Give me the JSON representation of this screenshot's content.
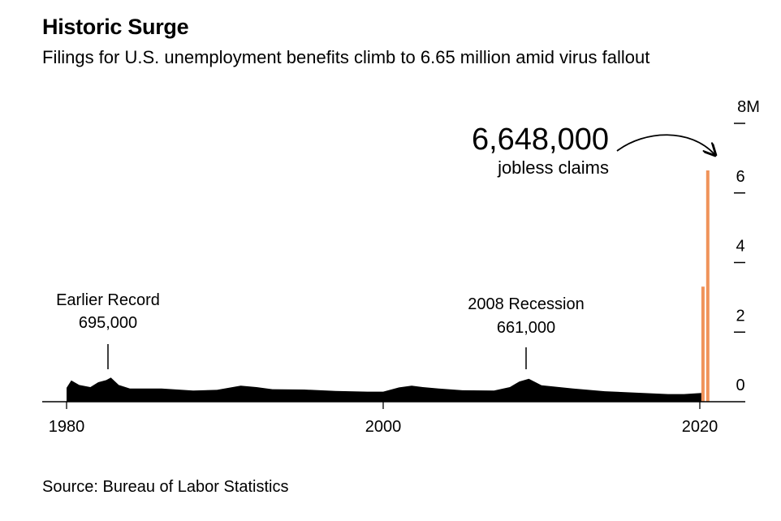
{
  "header": {
    "title": "Historic Surge",
    "subtitle": "Filings for U.S. unemployment benefits climb to 6.65 million amid virus fallout"
  },
  "footer": {
    "source": "Source: Bureau of Labor Statistics"
  },
  "annotations": {
    "highlight_value": "6,648,000",
    "highlight_label": "jobless claims",
    "earlier_record_label": "Earlier Record",
    "earlier_record_value": "695,000",
    "recession_label": "2008 Recession",
    "recession_value": "661,000"
  },
  "colors": {
    "history": "#000000",
    "highlight": "#f0935a"
  },
  "chart_data": {
    "type": "bar",
    "title": "Historic Surge",
    "subtitle": "Filings for U.S. unemployment benefits climb to 6.65 million amid virus fallout",
    "x_ticks": [
      "1980",
      "2000",
      "2020"
    ],
    "y_ticks": [
      "8M",
      "6",
      "4",
      "2",
      "0"
    ],
    "ylim": [
      0,
      8000000
    ],
    "xlim": [
      1980,
      2021.5
    ],
    "grid": false,
    "y_axis_position": "right",
    "series": [
      {
        "x": [
          1980,
          1980.3,
          1980.8,
          1981.5,
          1982,
          1982.5,
          1982.8,
          1983.3,
          1984,
          1986,
          1988,
          1989.5,
          1991,
          1992,
          1993,
          1995,
          1997,
          1999,
          2000,
          2001,
          2001.8,
          2002.5,
          2003.5,
          2005,
          2007,
          2008,
          2008.6,
          2009.2,
          2010,
          2012,
          2014,
          2016,
          2018,
          2019,
          2020.1
        ],
        "y": [
          400000,
          610000,
          480000,
          420000,
          560000,
          620000,
          695000,
          480000,
          380000,
          380000,
          320000,
          340000,
          460000,
          420000,
          360000,
          350000,
          310000,
          290000,
          290000,
          410000,
          460000,
          420000,
          380000,
          330000,
          320000,
          420000,
          580000,
          661000,
          470000,
          380000,
          300000,
          260000,
          220000,
          220000,
          250000
        ]
      },
      {
        "name": "",
        "x": [
          2020.2,
          2020.3
        ],
        "y": [
          3307000,
          6648000
        ]
      }
    ]
  }
}
